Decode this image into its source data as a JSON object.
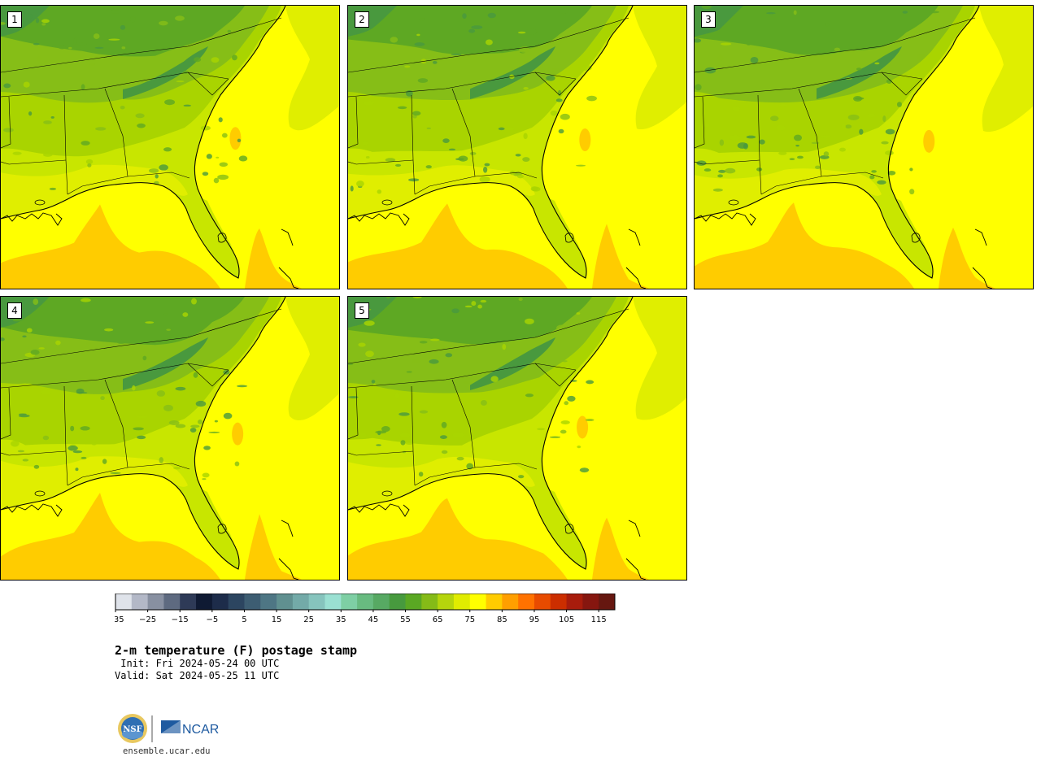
{
  "panels": [
    {
      "label": "1",
      "variant": 0
    },
    {
      "label": "2",
      "variant": 1
    },
    {
      "label": "3",
      "variant": 2
    },
    {
      "label": "4",
      "variant": 3
    },
    {
      "label": "5",
      "variant": 4
    }
  ],
  "colorbar": {
    "ticks": [
      "−35",
      "−25",
      "−15",
      "−5",
      "5",
      "15",
      "25",
      "35",
      "45",
      "55",
      "65",
      "75",
      "85",
      "95",
      "105",
      "115"
    ],
    "colors": [
      "#dfe3ea",
      "#b3b8c7",
      "#8890a1",
      "#5e6a80",
      "#2e3a57",
      "#0f1a33",
      "#1d2c4a",
      "#2c4560",
      "#3d5d72",
      "#4e7684",
      "#609090",
      "#73aaa8",
      "#86c4bd",
      "#9ae0d2",
      "#7ecfa4",
      "#68bb80",
      "#57a963",
      "#479a3e",
      "#5aa823",
      "#85bb17",
      "#b5d50c",
      "#e0ec00",
      "#ffff00",
      "#ffcc00",
      "#ff9f00",
      "#ff7200",
      "#e84b00",
      "#cc2e00",
      "#a81c0c",
      "#86160f",
      "#661710"
    ]
  },
  "legend_colors": {
    "land_warm": "#c8e600",
    "land_mid": "#a9d400",
    "land_cool": "#86be17",
    "land_cold": "#5ea823",
    "highland": "#49993e",
    "ocean": "#ffff00",
    "ocean_warm": "#ffcc00",
    "near_coast": "#e0ee00"
  },
  "title": "2-m temperature (F) postage stamp",
  "init": " Init: Fri 2024-05-24 00 UTC",
  "valid": "Valid: Sat 2024-05-25 11 UTC",
  "logo_text": "NCAR",
  "nsf_text": "NSF",
  "url": "ensemble.ucar.edu"
}
